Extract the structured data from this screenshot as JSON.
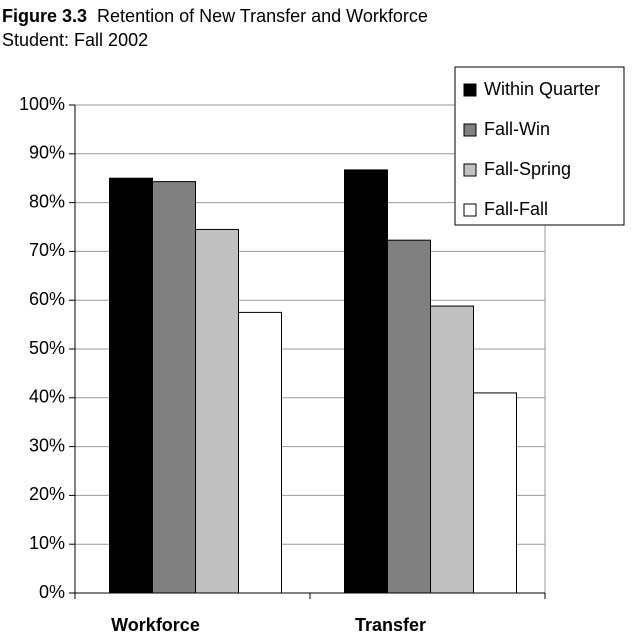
{
  "chart_data": {
    "type": "bar",
    "title_label": "Figure 3.3",
    "title": "Retention of New Transfer and Workforce Student:  Fall 2002",
    "categories": [
      "Workforce",
      "Transfer"
    ],
    "series": [
      {
        "name": "Within Quarter",
        "color": "#000000",
        "values": [
          85,
          86.7
        ]
      },
      {
        "name": "Fall-Win",
        "color": "#808080",
        "values": [
          84.3,
          72.3
        ]
      },
      {
        "name": "Fall-Spring",
        "color": "#c0c0c0",
        "values": [
          74.5,
          58.8
        ]
      },
      {
        "name": "Fall-Fall",
        "color": "#ffffff",
        "values": [
          57.5,
          41
        ]
      }
    ],
    "ylim": [
      0,
      100
    ],
    "yticks": [
      {
        "value": 0,
        "label": "0%"
      },
      {
        "value": 10,
        "label": "10%"
      },
      {
        "value": 20,
        "label": "20%"
      },
      {
        "value": 30,
        "label": "30%"
      },
      {
        "value": 40,
        "label": "40%"
      },
      {
        "value": 50,
        "label": "50%"
      },
      {
        "value": 60,
        "label": "60%"
      },
      {
        "value": 70,
        "label": "70%"
      },
      {
        "value": 80,
        "label": "80%"
      },
      {
        "value": 90,
        "label": "90%"
      },
      {
        "value": 100,
        "label": "100%"
      }
    ],
    "grid": true,
    "legend": "top-right"
  }
}
